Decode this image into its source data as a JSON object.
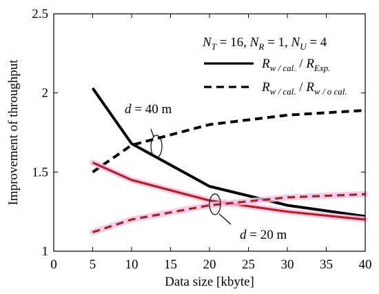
{
  "chart_data": {
    "type": "line",
    "xlabel": "Data size [kbyte]",
    "ylabel": "Improvement of throughput",
    "xlim": [
      0,
      40
    ],
    "ylim": [
      1,
      2.5
    ],
    "xticks": [
      0,
      5,
      10,
      15,
      20,
      25,
      30,
      35,
      40
    ],
    "yticks": [
      1,
      1.5,
      2,
      2.5
    ],
    "ytick_labels": [
      "1",
      "1.5",
      "2",
      "2.5"
    ],
    "grid": false,
    "legend": {
      "placement": "top-right",
      "header": {
        "nt": "N",
        "nt_sub": "T",
        "nt_val": " = 16, ",
        "nr": "N",
        "nr_sub": "R",
        "nr_val": " = 1, ",
        "nu": "N",
        "nu_sub": "U",
        "nu_val": " = 4"
      },
      "entries": [
        {
          "style": "solid",
          "num": "R",
          "num_sub": "w / cal.",
          "slash": " / ",
          "den": "R",
          "den_sub": "Exp."
        },
        {
          "style": "dashed",
          "num": "R",
          "num_sub": "w / cal.",
          "slash": " / ",
          "den": "R",
          "den_sub": "w / o cal."
        }
      ]
    },
    "annotations": [
      {
        "var": "d",
        "text": " = 40 m"
      },
      {
        "var": "d",
        "text": " = 20 m"
      }
    ],
    "series": [
      {
        "group": "d = 40 m",
        "style": "solid",
        "color": "#000000",
        "x": [
          5,
          10,
          20,
          30,
          40
        ],
        "y": [
          2.03,
          1.68,
          1.41,
          1.29,
          1.22
        ]
      },
      {
        "group": "d = 40 m",
        "style": "dashed",
        "color": "#000000",
        "x": [
          5,
          10,
          20,
          30,
          40
        ],
        "y": [
          1.5,
          1.67,
          1.8,
          1.86,
          1.89
        ]
      },
      {
        "group": "d = 20 m",
        "style": "solid",
        "color": "#b22222",
        "x": [
          5,
          10,
          20,
          30,
          40
        ],
        "y": [
          1.56,
          1.45,
          1.32,
          1.25,
          1.2
        ]
      },
      {
        "group": "d = 20 m",
        "style": "dashed",
        "color": "#9b2a1e",
        "x": [
          5,
          10,
          20,
          30,
          40
        ],
        "y": [
          1.12,
          1.2,
          1.29,
          1.34,
          1.36
        ]
      }
    ]
  }
}
